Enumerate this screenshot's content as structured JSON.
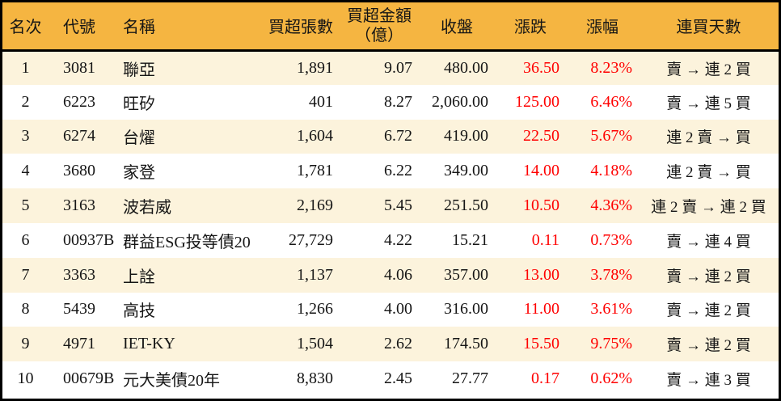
{
  "chart_data": {
    "type": "table",
    "columns": {
      "rank": "名次",
      "code": "代號",
      "name": "名稱",
      "volume": "買超張數",
      "amount_line1": "買超金額",
      "amount_line2": "（億）",
      "close": "收盤",
      "change": "漲跌",
      "pct": "漲幅",
      "streak": "連買天數"
    },
    "rows": [
      {
        "rank": "1",
        "code": "3081",
        "name": "聯亞",
        "volume": "1,891",
        "amount": "9.07",
        "close": "480.00",
        "change": "36.50",
        "pct": "8.23%",
        "streak": "賣 → 連 2 買"
      },
      {
        "rank": "2",
        "code": "6223",
        "name": "旺矽",
        "volume": "401",
        "amount": "8.27",
        "close": "2,060.00",
        "change": "125.00",
        "pct": "6.46%",
        "streak": "賣 → 連 5 買"
      },
      {
        "rank": "3",
        "code": "6274",
        "name": "台燿",
        "volume": "1,604",
        "amount": "6.72",
        "close": "419.00",
        "change": "22.50",
        "pct": "5.67%",
        "streak": "連 2 賣 → 買"
      },
      {
        "rank": "4",
        "code": "3680",
        "name": "家登",
        "volume": "1,781",
        "amount": "6.22",
        "close": "349.00",
        "change": "14.00",
        "pct": "4.18%",
        "streak": "連 2 賣 → 買"
      },
      {
        "rank": "5",
        "code": "3163",
        "name": "波若威",
        "volume": "2,169",
        "amount": "5.45",
        "close": "251.50",
        "change": "10.50",
        "pct": "4.36%",
        "streak": "連 2 賣 → 連 2 買"
      },
      {
        "rank": "6",
        "code": "00937B",
        "name": "群益ESG投等債20",
        "volume": "27,729",
        "amount": "4.22",
        "close": "15.21",
        "change": "0.11",
        "pct": "0.73%",
        "streak": "賣 → 連 4 買"
      },
      {
        "rank": "7",
        "code": "3363",
        "name": "上詮",
        "volume": "1,137",
        "amount": "4.06",
        "close": "357.00",
        "change": "13.00",
        "pct": "3.78%",
        "streak": "賣 → 連 2 買"
      },
      {
        "rank": "8",
        "code": "5439",
        "name": "高技",
        "volume": "1,266",
        "amount": "4.00",
        "close": "316.00",
        "change": "11.00",
        "pct": "3.61%",
        "streak": "賣 → 連 2 買"
      },
      {
        "rank": "9",
        "code": "4971",
        "name": "IET-KY",
        "volume": "1,504",
        "amount": "2.62",
        "close": "174.50",
        "change": "15.50",
        "pct": "9.75%",
        "streak": "賣 → 連 2 買"
      },
      {
        "rank": "10",
        "code": "00679B",
        "name": "元大美債20年",
        "volume": "8,830",
        "amount": "2.45",
        "close": "27.77",
        "change": "0.17",
        "pct": "0.62%",
        "streak": "賣 → 連 3 買"
      }
    ],
    "colors": {
      "header_bg": "#F5B541",
      "row_stripe_bg": "#FCF3DC",
      "row_plain_bg": "#FFFFFF",
      "up_text": "#FF0000",
      "body_text": "#151515",
      "border": "#000000"
    }
  }
}
